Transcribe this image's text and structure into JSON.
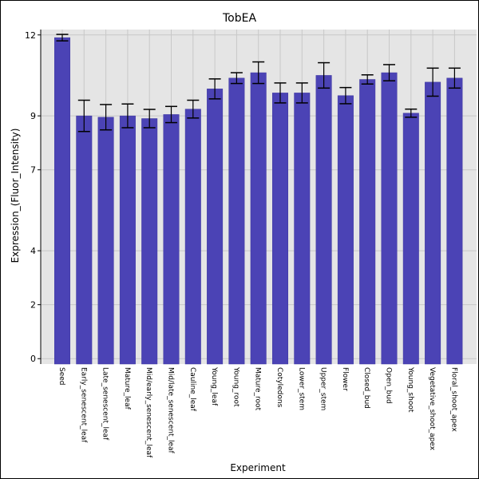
{
  "chart_data": {
    "type": "bar",
    "title": "TobEA",
    "xlabel": "Experiment",
    "ylabel": "Expression_(Fluor_Intensity)",
    "ylim": [
      -0.2,
      12.2
    ],
    "yticks": [
      0,
      2,
      4,
      7,
      9,
      12
    ],
    "categories": [
      "Seed",
      "Early_senescent_leaf",
      "Late_senescent_leaf",
      "Mature_leaf",
      "Mid/early_senescent_leaf",
      "Mid/late_senescent_leaf",
      "Cauline_leaf",
      "Young_leaf",
      "Young_root",
      "Mature_root",
      "Cotyledons",
      "Lower_stem",
      "Upper_stem",
      "Flower",
      "Closed_bud",
      "Open_bud",
      "Young_shoot",
      "Vegetative_shoot_apex",
      "Floral_shoot_apex"
    ],
    "values": [
      11.9,
      9.0,
      8.95,
      9.0,
      8.9,
      9.05,
      9.25,
      10.0,
      10.4,
      10.6,
      9.85,
      9.85,
      10.5,
      9.75,
      10.35,
      10.6,
      9.1,
      10.25,
      10.4
    ],
    "errors": [
      0.12,
      0.58,
      0.47,
      0.44,
      0.34,
      0.3,
      0.33,
      0.37,
      0.2,
      0.4,
      0.37,
      0.37,
      0.47,
      0.3,
      0.17,
      0.3,
      0.15,
      0.52,
      0.37
    ],
    "grid": true,
    "colors": {
      "bar": "#4b43b5",
      "bar_edge": "#3f38a0",
      "plot_bg": "#e5e5e5",
      "grid": "#c8c8c8",
      "error": "#000000"
    }
  }
}
